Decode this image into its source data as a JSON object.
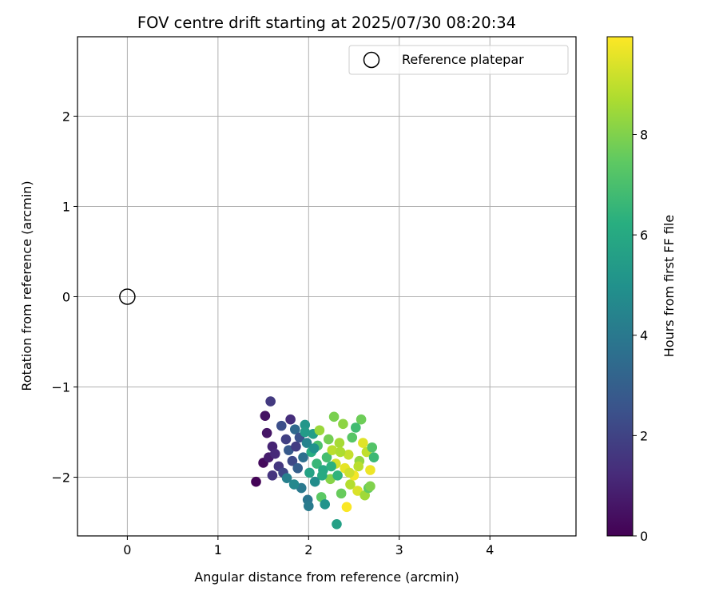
{
  "chart_data": {
    "type": "scatter",
    "title": "FOV centre drift starting at 2025/07/30 08:20:34",
    "xlabel": "Angular distance from reference (arcmin)",
    "ylabel": "Rotation from reference (arcmin)",
    "xlim": [
      -0.55,
      4.95
    ],
    "ylim": [
      -2.65,
      2.88
    ],
    "xticks": [
      0,
      1,
      2,
      3,
      4
    ],
    "yticks": [
      -2,
      -1,
      0,
      1,
      2
    ],
    "xtick_labels": [
      "0",
      "1",
      "2",
      "3",
      "4"
    ],
    "ytick_labels": [
      "−2",
      "−1",
      "0",
      "1",
      "2"
    ],
    "grid": true,
    "legend": {
      "position": "top-right",
      "entries": [
        {
          "label": "Reference platepar",
          "marker": "open-circle",
          "color": "#000000"
        }
      ]
    },
    "reference_point": {
      "x": 0,
      "y": 0,
      "label": "Reference platepar"
    },
    "colorbar": {
      "label": "Hours from first FF file",
      "colormap": "viridis",
      "min": 0,
      "max": 9.95,
      "ticks": [
        0,
        2,
        4,
        6,
        8
      ],
      "tick_labels": [
        "0",
        "2",
        "4",
        "6",
        "8"
      ]
    },
    "points": [
      {
        "x": 1.42,
        "y": -2.05,
        "c": 0.1
      },
      {
        "x": 1.5,
        "y": -1.84,
        "c": 0.3
      },
      {
        "x": 1.52,
        "y": -1.32,
        "c": 0.5
      },
      {
        "x": 1.54,
        "y": -1.51,
        "c": 0.6
      },
      {
        "x": 1.56,
        "y": -1.78,
        "c": 0.8
      },
      {
        "x": 1.58,
        "y": -1.16,
        "c": 1.7
      },
      {
        "x": 1.6,
        "y": -1.66,
        "c": 1.0
      },
      {
        "x": 1.63,
        "y": -1.74,
        "c": 1.2
      },
      {
        "x": 1.6,
        "y": -1.98,
        "c": 1.5
      },
      {
        "x": 1.67,
        "y": -1.88,
        "c": 1.6
      },
      {
        "x": 1.7,
        "y": -1.43,
        "c": 2.4
      },
      {
        "x": 1.72,
        "y": -1.95,
        "c": 2.1
      },
      {
        "x": 1.75,
        "y": -1.58,
        "c": 1.9
      },
      {
        "x": 1.78,
        "y": -1.7,
        "c": 2.8
      },
      {
        "x": 1.8,
        "y": -1.36,
        "c": 1.3
      },
      {
        "x": 1.82,
        "y": -1.82,
        "c": 2.2
      },
      {
        "x": 1.85,
        "y": -1.47,
        "c": 3.4
      },
      {
        "x": 1.86,
        "y": -1.66,
        "c": 1.8
      },
      {
        "x": 1.88,
        "y": -1.9,
        "c": 3.0
      },
      {
        "x": 1.9,
        "y": -1.56,
        "c": 2.5
      },
      {
        "x": 1.92,
        "y": -2.12,
        "c": 4.0
      },
      {
        "x": 1.94,
        "y": -1.78,
        "c": 3.6
      },
      {
        "x": 1.96,
        "y": -1.42,
        "c": 5.2
      },
      {
        "x": 1.98,
        "y": -1.62,
        "c": 4.4
      },
      {
        "x": 1.99,
        "y": -2.25,
        "c": 3.9
      },
      {
        "x": 2.0,
        "y": -2.32,
        "c": 4.1
      },
      {
        "x": 2.01,
        "y": -1.95,
        "c": 5.7
      },
      {
        "x": 2.03,
        "y": -1.72,
        "c": 6.2
      },
      {
        "x": 2.05,
        "y": -1.52,
        "c": 5.5
      },
      {
        "x": 2.07,
        "y": -2.05,
        "c": 4.8
      },
      {
        "x": 2.09,
        "y": -1.85,
        "c": 6.6
      },
      {
        "x": 2.1,
        "y": -1.65,
        "c": 7.1
      },
      {
        "x": 2.12,
        "y": -1.48,
        "c": 8.4
      },
      {
        "x": 2.14,
        "y": -2.22,
        "c": 7.4
      },
      {
        "x": 2.16,
        "y": -1.92,
        "c": 5.9
      },
      {
        "x": 2.18,
        "y": -2.3,
        "c": 5.1
      },
      {
        "x": 2.2,
        "y": -1.78,
        "c": 6.9
      },
      {
        "x": 2.22,
        "y": -1.58,
        "c": 7.8
      },
      {
        "x": 2.24,
        "y": -2.02,
        "c": 8.1
      },
      {
        "x": 2.26,
        "y": -1.7,
        "c": 8.9
      },
      {
        "x": 2.28,
        "y": -1.33,
        "c": 7.9
      },
      {
        "x": 2.3,
        "y": -1.85,
        "c": 9.3
      },
      {
        "x": 2.31,
        "y": -2.52,
        "c": 5.6
      },
      {
        "x": 2.32,
        "y": -1.98,
        "c": 6.4
      },
      {
        "x": 2.34,
        "y": -1.62,
        "c": 8.6
      },
      {
        "x": 2.36,
        "y": -2.18,
        "c": 7.6
      },
      {
        "x": 2.38,
        "y": -1.41,
        "c": 8.2
      },
      {
        "x": 2.4,
        "y": -1.9,
        "c": 9.6
      },
      {
        "x": 2.42,
        "y": -2.33,
        "c": 9.9
      },
      {
        "x": 2.44,
        "y": -1.75,
        "c": 9.1
      },
      {
        "x": 2.46,
        "y": -2.08,
        "c": 8.8
      },
      {
        "x": 2.48,
        "y": -1.56,
        "c": 7.3
      },
      {
        "x": 2.5,
        "y": -1.98,
        "c": 9.8
      },
      {
        "x": 2.52,
        "y": -1.45,
        "c": 6.8
      },
      {
        "x": 2.54,
        "y": -2.15,
        "c": 9.4
      },
      {
        "x": 2.56,
        "y": -1.82,
        "c": 8.3
      },
      {
        "x": 2.58,
        "y": -1.36,
        "c": 7.7
      },
      {
        "x": 2.6,
        "y": -1.62,
        "c": 9.5
      },
      {
        "x": 2.62,
        "y": -2.2,
        "c": 8.5
      },
      {
        "x": 2.64,
        "y": -1.72,
        "c": 9.0
      },
      {
        "x": 2.66,
        "y": -2.12,
        "c": 7.5
      },
      {
        "x": 2.68,
        "y": -1.92,
        "c": 9.7
      },
      {
        "x": 2.7,
        "y": -1.67,
        "c": 7.2
      },
      {
        "x": 2.72,
        "y": -1.78,
        "c": 6.7
      },
      {
        "x": 2.68,
        "y": -2.1,
        "c": 8.0
      },
      {
        "x": 1.76,
        "y": -2.01,
        "c": 4.3
      },
      {
        "x": 1.84,
        "y": -2.08,
        "c": 4.6
      },
      {
        "x": 1.96,
        "y": -1.5,
        "c": 5.4
      },
      {
        "x": 2.06,
        "y": -1.68,
        "c": 5.0
      },
      {
        "x": 2.15,
        "y": -1.98,
        "c": 6.0
      },
      {
        "x": 2.25,
        "y": -1.88,
        "c": 6.3
      },
      {
        "x": 2.35,
        "y": -1.72,
        "c": 8.7
      },
      {
        "x": 2.45,
        "y": -1.95,
        "c": 9.2
      },
      {
        "x": 2.55,
        "y": -1.88,
        "c": 8.9
      }
    ]
  }
}
